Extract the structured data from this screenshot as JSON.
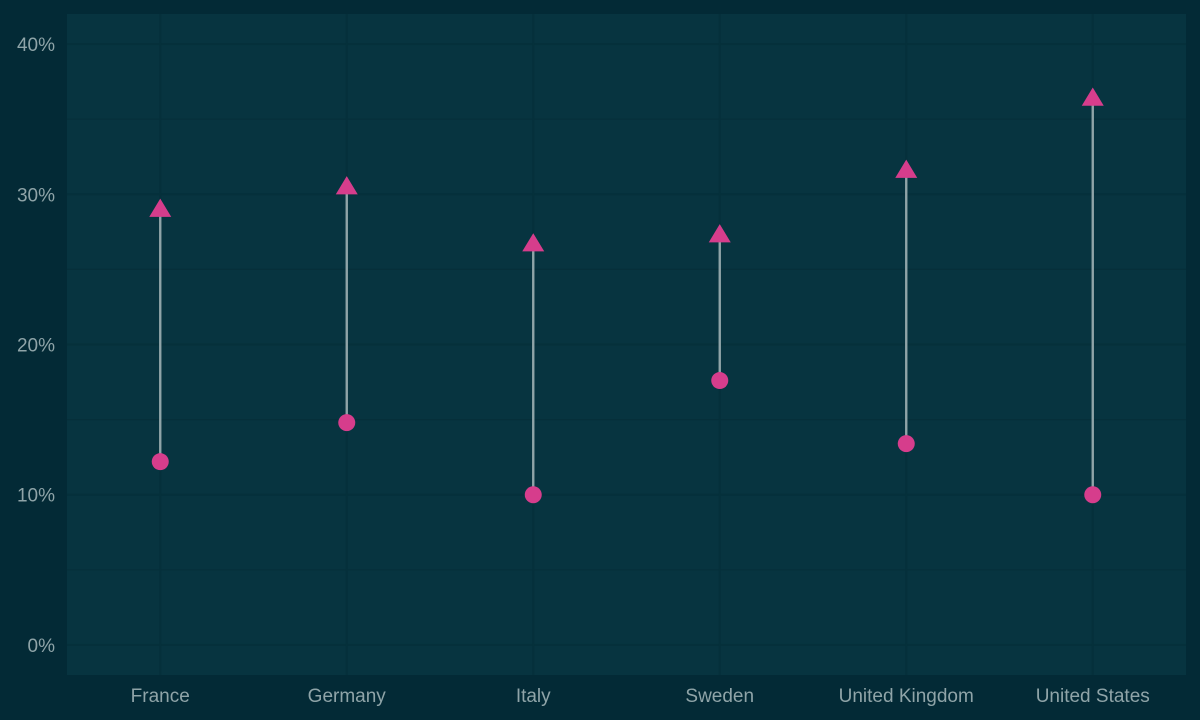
{
  "theme": {
    "background": "#032a36",
    "panel": "#073440",
    "grid": "#05303b",
    "text": "#8fa4a8",
    "connector": "#8fa4a8",
    "marker": "#d63d8c"
  },
  "chart_data": {
    "type": "dumbbell",
    "title": "",
    "xlabel": "",
    "ylabel": "",
    "categories": [
      "France",
      "Germany",
      "Italy",
      "Sweden",
      "United Kingdom",
      "United States"
    ],
    "series": [
      {
        "marker": "circle",
        "values": [
          12.2,
          14.8,
          10.0,
          17.6,
          13.4,
          10.0
        ]
      },
      {
        "marker": "triangle",
        "values": [
          28.9,
          30.4,
          26.6,
          27.2,
          31.5,
          36.3
        ]
      }
    ],
    "y_ticks": [
      0,
      10,
      20,
      30,
      40
    ],
    "y_tick_labels": [
      "0%",
      "10%",
      "20%",
      "30%",
      "40%"
    ],
    "ylim": [
      -2,
      42
    ],
    "grid": true,
    "legend": "none"
  }
}
